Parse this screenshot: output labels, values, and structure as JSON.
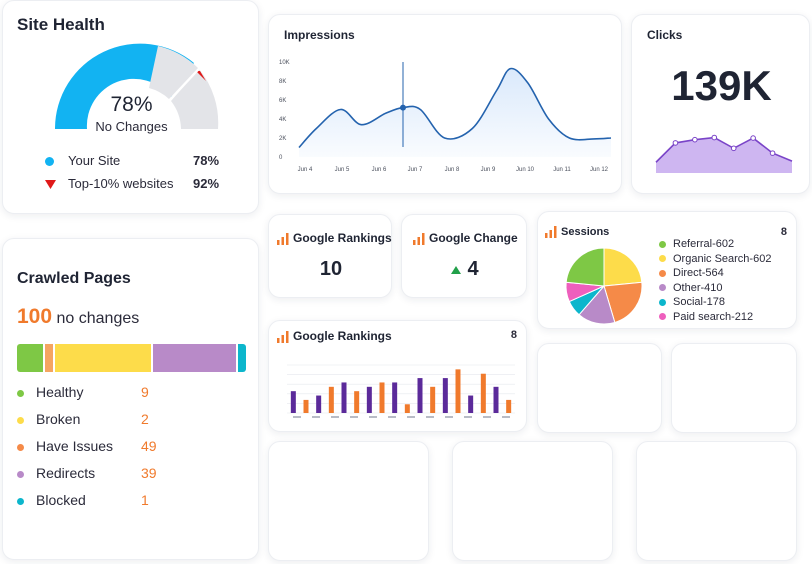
{
  "site_health": {
    "title": "Site Health",
    "percent": "78%",
    "status": "No Changes",
    "gauge_value": 0.78,
    "legend": [
      {
        "label": "Your Site",
        "value": "78%",
        "color": "#12b3f2",
        "icon": "dot-icon"
      },
      {
        "label": "Top-10% websites",
        "value": "92%",
        "color": "#e01919",
        "icon": "triangle-down-icon"
      }
    ]
  },
  "crawled_pages": {
    "title": "Crawled Pages",
    "count": "100",
    "count_suffix": "no changes",
    "items": [
      {
        "label": "Healthy",
        "value": 9,
        "color": "#7ec845"
      },
      {
        "label": "Broken",
        "value": 2,
        "color": "#f5a561"
      },
      {
        "label": "Have Issues",
        "value": 49,
        "color": "#fddc4a"
      },
      {
        "label": "Redirects",
        "value": 39,
        "color": "#b88ac8"
      },
      {
        "label": "Blocked",
        "value": 1,
        "color": "#0cb6cc"
      }
    ],
    "legend_colors": [
      "#7ec845",
      "#fddc4a",
      "#f58a48",
      "#b88ac8",
      "#0cb6cc"
    ]
  },
  "impressions": {
    "title": "Impressions",
    "chart_data": {
      "type": "area",
      "y_ticks": [
        "10K",
        "8K",
        "6K",
        "4K",
        "2K",
        "0"
      ],
      "x_ticks": [
        "Jun 4",
        "Jun 5",
        "Jun 6",
        "Jun 7",
        "Jun 8",
        "Jun 9",
        "Jun 10",
        "Jun 11",
        "Jun 12"
      ],
      "ylim": [
        0,
        10000
      ],
      "x": [
        0,
        0.5,
        1.2,
        1.8,
        2.5,
        3,
        3.5,
        4.2,
        5,
        5.7,
        6.1,
        6.6,
        7.2,
        7.8,
        8.5,
        9
      ],
      "values": [
        1000,
        3000,
        5000,
        3400,
        4600,
        5200,
        5000,
        2000,
        3000,
        7000,
        9300,
        7800,
        4000,
        2000,
        1900,
        2000
      ],
      "marker_x": 3,
      "marker_value": 5200,
      "line_color": "#2463ae",
      "fill_color": "#d8e8fb"
    }
  },
  "clicks": {
    "title": "Clicks",
    "value": "139K",
    "chart_data": {
      "type": "area",
      "values": [
        2,
        5.6,
        6.2,
        6.6,
        4.6,
        6.5,
        3.7,
        2.2
      ],
      "ylim": [
        0,
        8
      ],
      "line_color": "#7a44c8",
      "fill_color": "#c5a9ef"
    }
  },
  "google_rankings_kpi": {
    "title": "Google Rankings",
    "value": "10"
  },
  "google_change": {
    "title": "Google Change",
    "value": "4",
    "trend": "up",
    "trend_color": "#22a04a"
  },
  "sessions": {
    "title": "Sessions",
    "count": "8",
    "chart_data": {
      "type": "pie",
      "slices": [
        {
          "label": "Referral-602",
          "value": 602,
          "color": "#fddc4a"
        },
        {
          "label": "Direct-564",
          "value": 564,
          "color": "#f58a48"
        },
        {
          "label": "Other-410",
          "value": 410,
          "color": "#b88ac8"
        },
        {
          "label": "Social-178",
          "value": 178,
          "color": "#0cb6cc"
        },
        {
          "label": "Paid search-212",
          "value": 212,
          "color": "#ee5fbd"
        },
        {
          "label": "Organic Search-602",
          "value": 602,
          "color": "#7ec845"
        }
      ],
      "legend": [
        {
          "label": "Referral-602",
          "color": "#7ec845"
        },
        {
          "label": "Organic Search-602",
          "color": "#fddc4a"
        },
        {
          "label": "Direct-564",
          "color": "#f58a48"
        },
        {
          "label": "Other-410",
          "color": "#b88ac8"
        },
        {
          "label": "Social-178",
          "color": "#0cb6cc"
        },
        {
          "label": "Paid search-212",
          "color": "#ee5fbd"
        }
      ]
    }
  },
  "google_rankings_chart": {
    "title": "Google Rankings",
    "count": "8",
    "chart_data": {
      "type": "bar",
      "series": [
        {
          "name": "",
          "color": "#5b2a9a",
          "values": [
            5,
            3,
            4,
            2,
            7,
            2,
            6,
            2,
            7,
            1,
            8,
            5,
            8,
            6,
            4,
            5,
            6,
            4
          ]
        },
        {
          "name": "",
          "color": "#f07a2c",
          "values": [
            8,
            3,
            9,
            6,
            6,
            5,
            6,
            7,
            9,
            2,
            10,
            6,
            10,
            10,
            8,
            9,
            7,
            3
          ]
        }
      ],
      "ylim": [
        0,
        11
      ]
    }
  },
  "icons": {
    "bars": "signal-bars-icon"
  }
}
